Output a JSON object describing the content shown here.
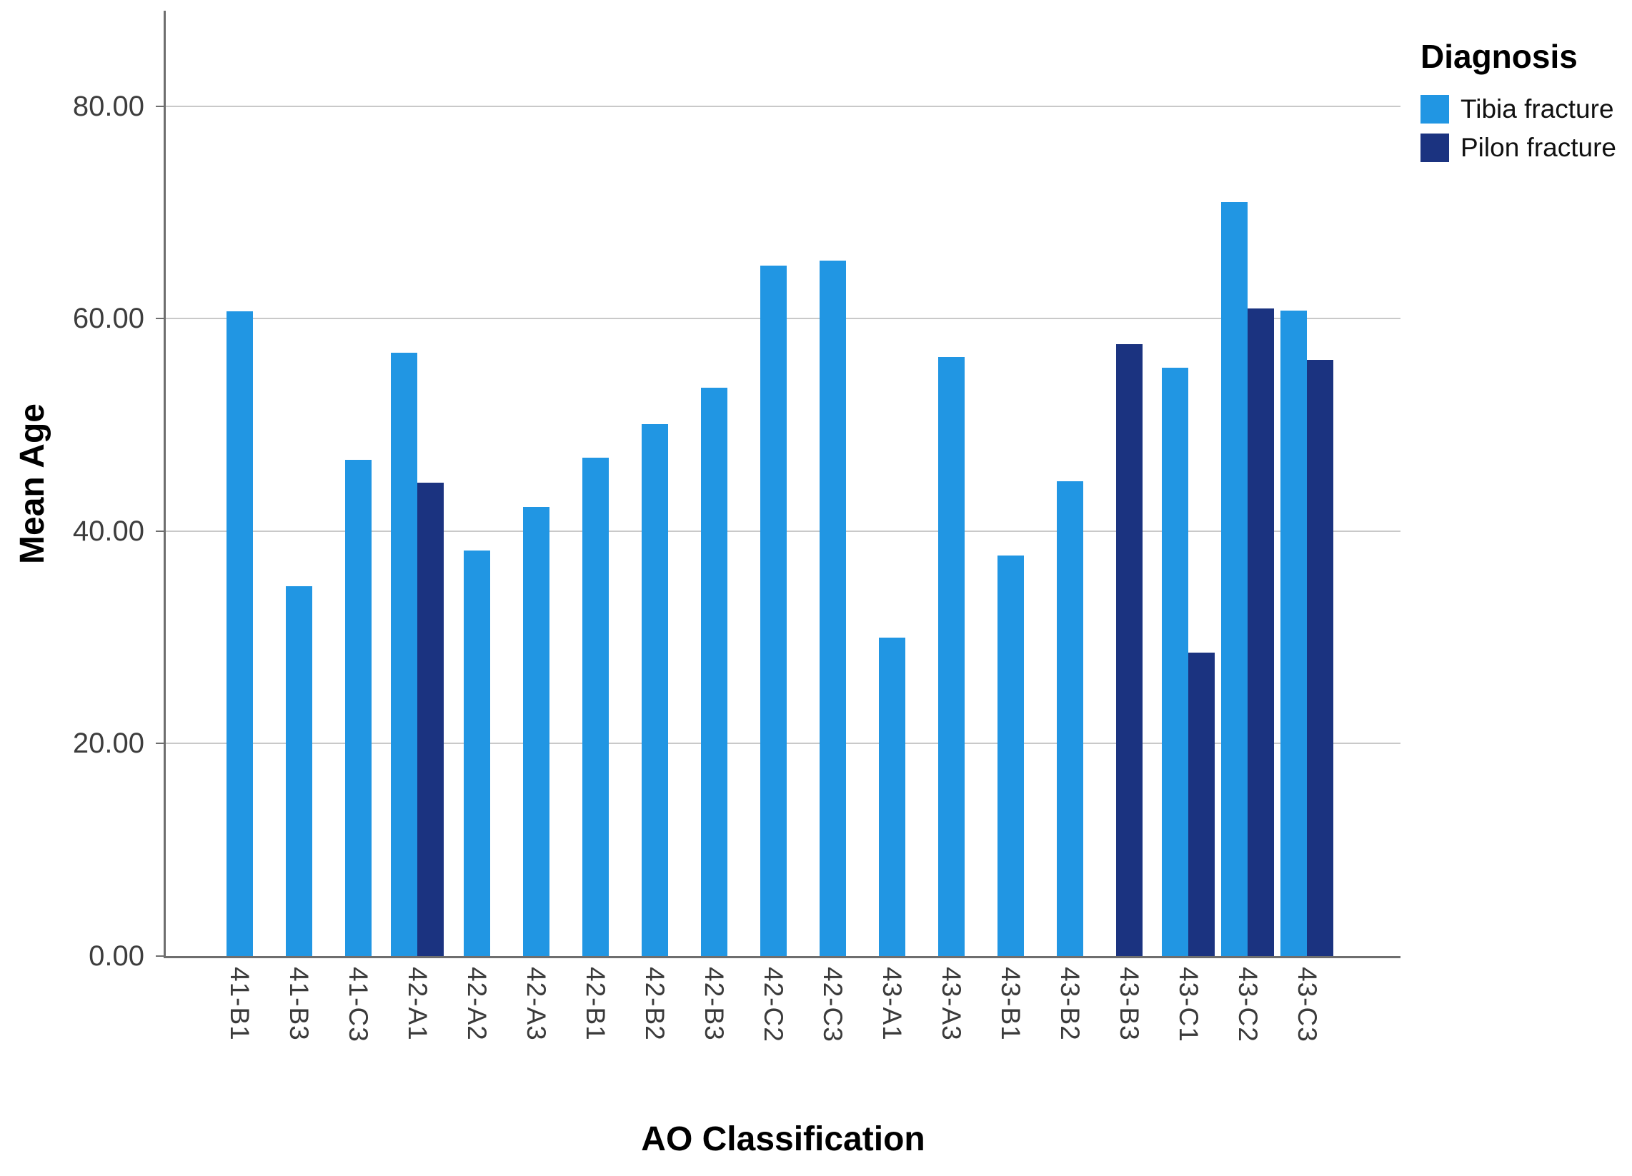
{
  "chart_data": {
    "type": "bar",
    "title": "",
    "legend_title": "Diagnosis",
    "legend_position": "top-right",
    "xlabel": "AO Classification",
    "ylabel": "Mean Age",
    "grid": true,
    "ylim": [
      0,
      89
    ],
    "y_ticks": [
      0,
      20,
      40,
      60,
      80
    ],
    "y_tick_labels": [
      "0.00",
      "20.00",
      "40.00",
      "60.00",
      "80.00"
    ],
    "categories": [
      "41-B1",
      "41-B3",
      "41-C3",
      "42-A1",
      "42-A2",
      "42-A3",
      "42-B1",
      "42-B2",
      "42-B3",
      "42-C2",
      "42-C3",
      "43-A1",
      "43-A3",
      "43-B1",
      "43-B2",
      "43-B3",
      "43-C1",
      "43-C2",
      "43-C3"
    ],
    "series": [
      {
        "name": "Tibia fracture",
        "color": "#2196E3",
        "values": [
          60.7,
          34.8,
          46.7,
          56.8,
          38.2,
          42.3,
          46.9,
          50.1,
          53.5,
          65.0,
          65.5,
          30.0,
          56.4,
          37.7,
          44.7,
          null,
          55.4,
          71.0,
          60.8
        ]
      },
      {
        "name": "Pilon fracture",
        "color": "#1B3380",
        "values": [
          null,
          null,
          null,
          44.6,
          null,
          null,
          null,
          null,
          null,
          null,
          null,
          null,
          null,
          null,
          null,
          57.6,
          28.6,
          61.0,
          56.1
        ]
      }
    ]
  },
  "colors": {
    "gridline": "#C9C9C9",
    "axis": "#6E6E6E",
    "tick_text": "#3D3D3D",
    "title_text": "#000000"
  }
}
